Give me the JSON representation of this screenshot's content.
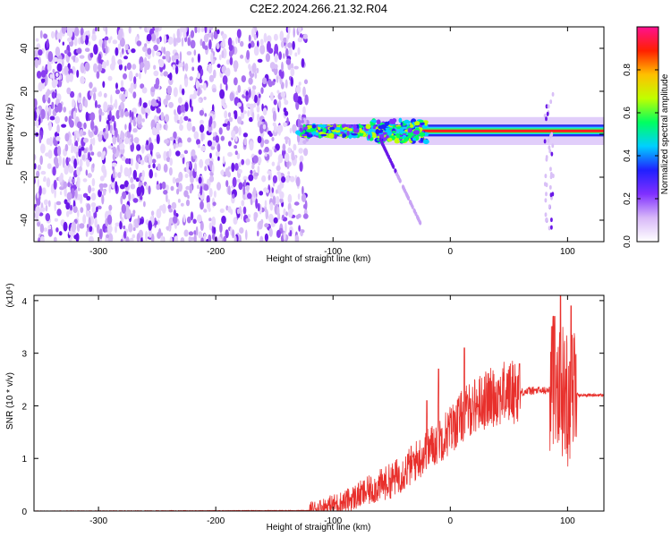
{
  "title": "C2E2.2024.266.21.32.R04",
  "chart_data": [
    {
      "type": "heatmap",
      "xlabel": "Height of straight line (km)",
      "ylabel": "Frequency (Hz)",
      "xlim": [
        -355,
        131
      ],
      "ylim": [
        -50,
        50
      ],
      "x_ticks": [
        -300,
        -200,
        -100,
        0,
        100
      ],
      "y_ticks": [
        -40,
        -20,
        0,
        20,
        40
      ],
      "colorbar": {
        "label": "Normalized spectral amplitude",
        "range": [
          0.0,
          1.0
        ],
        "ticks": [
          0.0,
          0.2,
          0.4,
          0.6,
          0.8
        ],
        "colors": [
          "#ffffff",
          "#d8b8f8",
          "#8030ff",
          "#2020ff",
          "#00d0ff",
          "#00ff60",
          "#c0ff00",
          "#ffc000",
          "#ff2000",
          "#ff1090"
        ]
      },
      "regions": [
        {
          "name": "noise",
          "x": [
            -355,
            -130
          ],
          "freq": [
            -50,
            50
          ],
          "amplitude": [
            0.0,
            0.25
          ]
        },
        {
          "name": "signal",
          "x": [
            -130,
            131
          ],
          "freq_center": 1.5,
          "amplitude": [
            0.3,
            1.0
          ]
        }
      ]
    },
    {
      "type": "line",
      "xlabel": "Height of straight line (km)",
      "ylabel": "SNR (10 * v/v)",
      "y_multiplier": "(x10⁴)",
      "xlim": [
        -355,
        131
      ],
      "ylim": [
        0,
        4.1
      ],
      "x_ticks": [
        -300,
        -200,
        -100,
        0,
        100
      ],
      "y_ticks": [
        0,
        1,
        2,
        3,
        4
      ],
      "color": "#e8302c",
      "x": [
        -355,
        -120,
        -110,
        -100,
        -90,
        -80,
        -70,
        -60,
        -50,
        -40,
        -30,
        -20,
        -10,
        0,
        10,
        20,
        30,
        40,
        50,
        60,
        70,
        80,
        85,
        90,
        95,
        100,
        105,
        110,
        120,
        131
      ],
      "y": [
        0.0,
        0.01,
        0.05,
        0.1,
        0.15,
        0.25,
        0.35,
        0.45,
        0.55,
        0.7,
        0.9,
        1.1,
        1.3,
        1.5,
        1.75,
        1.95,
        2.05,
        2.15,
        2.2,
        2.25,
        2.28,
        2.28,
        2.28,
        2.5,
        2.2,
        2.0,
        2.25,
        2.2,
        2.2,
        2.2
      ],
      "spike_peaks": [
        {
          "x": 94,
          "y": 4.1
        },
        {
          "x": 103,
          "y": 3.9
        },
        {
          "x": 89,
          "y": 3.7
        },
        {
          "x": 59,
          "y": 2.8
        },
        {
          "x": 12,
          "y": 3.1
        },
        {
          "x": -10,
          "y": 2.7
        },
        {
          "x": -20,
          "y": 2.1
        }
      ]
    }
  ]
}
